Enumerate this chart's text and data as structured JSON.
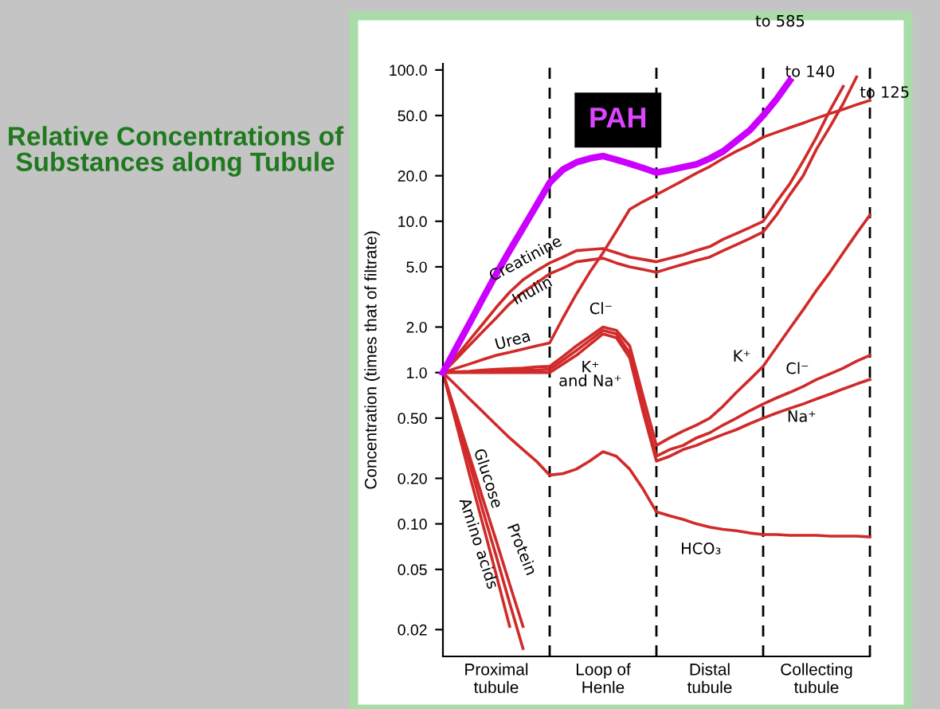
{
  "chart_data": {
    "type": "line",
    "title": "Relative Concentrations of Substances along Tubule",
    "ylabel": "Concentration (times that of filtrate)",
    "log": "y",
    "categories": [
      null,
      null,
      null,
      null,
      "Proximal\ntubule",
      null,
      null,
      null,
      null,
      null,
      null,
      null,
      "Loop of\nHenle",
      null,
      null,
      null,
      null,
      null,
      null,
      null,
      "Distal\ntubule",
      null,
      null,
      null,
      null,
      null,
      null,
      null,
      "Collecting\ntubule",
      null,
      null,
      null,
      null
    ],
    "ylim": [
      0.0133,
      110
    ],
    "yticks": [
      {
        "value": 0.02,
        "label": "0.02"
      },
      {
        "value": 0.05,
        "label": "0.05"
      },
      {
        "value": 0.1,
        "label": "0.10"
      },
      {
        "value": 0.2,
        "label": "0.20"
      },
      {
        "value": 0.5,
        "label": "0.50"
      },
      {
        "value": 1,
        "label": "1.0"
      },
      {
        "value": 2,
        "label": "2.0"
      },
      {
        "value": 5,
        "label": "5.0"
      },
      {
        "value": 10,
        "label": "10.0"
      },
      {
        "value": 20,
        "label": "20.0"
      },
      {
        "value": 50,
        "label": "50.0"
      },
      {
        "value": 100,
        "label": "100.0"
      }
    ],
    "grid": "x",
    "legend": false,
    "marker": "none",
    "series": [
      {
        "color": "#cc00ff",
        "values": [
          1,
          1.46,
          2.12,
          3.1,
          4.5,
          6.4,
          9,
          12.7,
          18,
          22,
          24.5,
          26,
          27,
          25.5,
          24,
          22.5,
          21,
          21.8,
          22.8,
          23.8,
          26,
          29,
          34,
          40,
          50,
          64,
          85,
          null,
          null,
          null,
          null,
          null,
          null
        ]
      },
      {
        "color": "#d02a2a",
        "values": [
          1,
          1.28,
          1.64,
          2.1,
          2.7,
          3.4,
          4.1,
          4.7,
          5.3,
          5.8,
          6.4,
          6.5,
          6.6,
          6.2,
          5.8,
          5.6,
          5.4,
          5.7,
          6.0,
          6.4,
          6.8,
          7.6,
          8.3,
          9.1,
          10,
          13.4,
          17.7,
          25,
          36,
          54,
          78,
          null,
          null
        ]
      },
      {
        "color": "#d02a2a",
        "values": [
          1,
          1.23,
          1.52,
          1.87,
          2.3,
          2.85,
          3.4,
          3.9,
          4.5,
          4.9,
          5.4,
          5.55,
          5.7,
          5.3,
          5.0,
          4.8,
          4.6,
          4.9,
          5.2,
          5.5,
          5.8,
          6.4,
          7.0,
          7.7,
          8.5,
          11,
          15,
          20,
          30,
          42,
          60,
          90,
          null
        ]
      },
      {
        "color": "#d02a2a",
        "values": [
          1,
          1.07,
          1.14,
          1.22,
          1.3,
          1.36,
          1.43,
          1.5,
          1.57,
          2.3,
          3.3,
          4.6,
          6.2,
          8.6,
          12,
          13.5,
          15,
          16.7,
          18.6,
          20.8,
          23,
          26,
          29,
          32,
          36,
          38.7,
          41.6,
          44.6,
          48,
          51.5,
          55,
          59,
          63
        ]
      },
      {
        "color": "#d02a2a",
        "values": [
          1,
          1.01,
          1.02,
          1.04,
          1.05,
          1.06,
          1.07,
          1.09,
          1.1,
          1.28,
          1.5,
          1.73,
          2.0,
          1.9,
          1.5,
          0.7,
          0.33,
          0.37,
          0.41,
          0.45,
          0.5,
          0.6,
          0.74,
          0.9,
          1.1,
          1.47,
          1.96,
          2.6,
          3.5,
          4.6,
          6.2,
          8.3,
          11
        ]
      },
      {
        "color": "#d02a2a",
        "values": [
          1,
          1.01,
          1.01,
          1.02,
          1.02,
          1.03,
          1.04,
          1.04,
          1.05,
          1.21,
          1.4,
          1.63,
          1.9,
          1.8,
          1.35,
          0.6,
          0.28,
          0.31,
          0.33,
          0.37,
          0.4,
          0.45,
          0.5,
          0.56,
          0.62,
          0.68,
          0.74,
          0.81,
          0.9,
          0.98,
          1.07,
          1.19,
          1.3
        ]
      },
      {
        "color": "#d02a2a",
        "values": [
          1,
          1,
          1,
          1,
          1,
          1,
          1,
          1,
          1,
          1.14,
          1.3,
          1.53,
          1.8,
          1.7,
          1.25,
          0.55,
          0.26,
          0.28,
          0.31,
          0.33,
          0.36,
          0.39,
          0.42,
          0.46,
          0.5,
          0.54,
          0.58,
          0.62,
          0.67,
          0.72,
          0.78,
          0.84,
          0.9
        ]
      },
      {
        "color": "#d02a2a",
        "values": [
          1,
          0.82,
          0.67,
          0.55,
          0.45,
          0.37,
          0.31,
          0.26,
          0.21,
          0.215,
          0.23,
          0.26,
          0.3,
          0.28,
          0.23,
          0.17,
          0.12,
          0.113,
          0.107,
          0.1,
          0.095,
          0.092,
          0.09,
          0.087,
          0.085,
          0.085,
          0.084,
          0.084,
          0.084,
          0.083,
          0.083,
          0.083,
          0.082
        ]
      },
      {
        "color": "#d02a2a",
        "values": [
          1,
          0.46,
          0.21,
          0.099,
          0.046,
          0.021,
          null,
          null,
          null,
          null,
          null,
          null,
          null,
          null,
          null,
          null,
          null,
          null,
          null,
          null,
          null,
          null,
          null,
          null,
          null,
          null,
          null,
          null,
          null,
          null,
          null,
          null,
          null
        ]
      },
      {
        "color": "#d02a2a",
        "values": [
          1,
          0.5,
          0.25,
          0.122,
          0.061,
          0.03,
          0.015,
          null,
          null,
          null,
          null,
          null,
          null,
          null,
          null,
          null,
          null,
          null,
          null,
          null,
          null,
          null,
          null,
          null,
          null,
          null,
          null,
          null,
          null,
          null,
          null,
          null,
          null
        ]
      },
      {
        "color": "#d02a2a",
        "values": [
          1,
          0.53,
          0.28,
          0.146,
          0.077,
          0.04,
          0.021,
          null,
          null,
          null,
          null,
          null,
          null,
          null,
          null,
          null,
          null,
          null,
          null,
          null,
          null,
          null,
          null,
          null,
          null,
          null,
          null,
          null,
          null,
          null,
          null,
          null,
          null
        ]
      }
    ],
    "annotations": [
      "PAH",
      "to 585",
      "to 140",
      "to 125",
      "Creatinine",
      "Inulin",
      "Urea",
      "Cl⁻",
      "K⁺\nand Na⁺",
      "K⁺",
      "Cl⁻",
      "Na⁺",
      "HCO₃",
      "Glucose",
      "Amino acids",
      "Protein"
    ]
  }
}
